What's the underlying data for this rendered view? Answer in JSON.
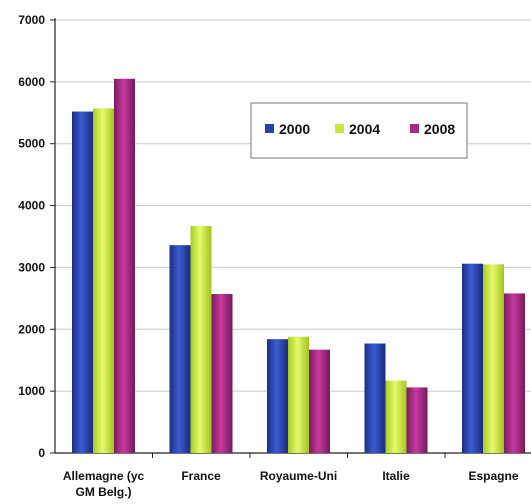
{
  "chart_data": {
    "type": "bar",
    "title": "",
    "xlabel": "",
    "ylabel": "",
    "ylim": [
      0,
      7000
    ],
    "yticks": [
      0,
      1000,
      2000,
      3000,
      4000,
      5000,
      6000,
      7000
    ],
    "grid": true,
    "legend_position": "top-right",
    "categories": [
      [
        "Allemagne (yc",
        "GM Belg.)"
      ],
      [
        "France"
      ],
      [
        "Royaume-Uni"
      ],
      [
        "Italie"
      ],
      [
        "Espagne"
      ]
    ],
    "series": [
      {
        "name": "2000",
        "color": "#2540a8",
        "values": [
          5520,
          3360,
          1840,
          1770,
          3060
        ]
      },
      {
        "name": "2004",
        "color": "#c8ea3a",
        "values": [
          5570,
          3670,
          1880,
          1170,
          3050
        ]
      },
      {
        "name": "2008",
        "color": "#a52a82",
        "values": [
          6050,
          2570,
          1670,
          1060,
          2580
        ]
      }
    ]
  }
}
